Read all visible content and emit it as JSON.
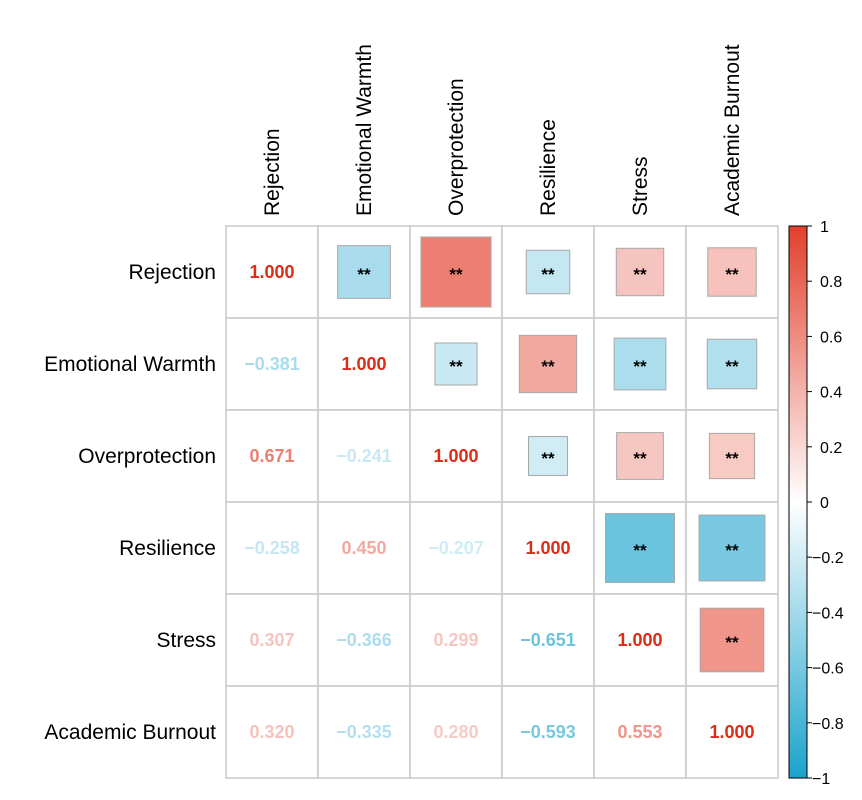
{
  "chart_data": {
    "type": "heatmap",
    "subtype": "correlation-matrix-mixed",
    "variables": [
      "Rejection",
      "Emotional Warmth",
      "Overprotection",
      "Resilience",
      "Stress",
      "Academic Burnout"
    ],
    "matrix": [
      [
        1.0,
        -0.381,
        0.671,
        -0.258,
        0.307,
        0.32
      ],
      [
        -0.381,
        1.0,
        -0.241,
        0.45,
        -0.366,
        -0.335
      ],
      [
        0.671,
        -0.241,
        1.0,
        -0.207,
        0.299,
        0.28
      ],
      [
        -0.258,
        0.45,
        -0.207,
        1.0,
        -0.651,
        -0.593
      ],
      [
        0.307,
        -0.366,
        0.299,
        -0.651,
        1.0,
        0.553
      ],
      [
        0.32,
        -0.335,
        0.28,
        -0.593,
        0.553,
        1.0
      ]
    ],
    "lower": "number",
    "upper": "square",
    "significance_mark": "**",
    "colorbar": {
      "range": [
        -1,
        1
      ],
      "ticks": [
        "1",
        "0.8",
        "0.6",
        "0.4",
        "0.2",
        "0",
        "−0.2",
        "−0.4",
        "−0.6",
        "−0.8",
        "−1"
      ],
      "placement": "right"
    },
    "colors": {
      "negative": "#1ba3cc",
      "zero": "#ffffff",
      "positive": "#e2402c"
    }
  }
}
